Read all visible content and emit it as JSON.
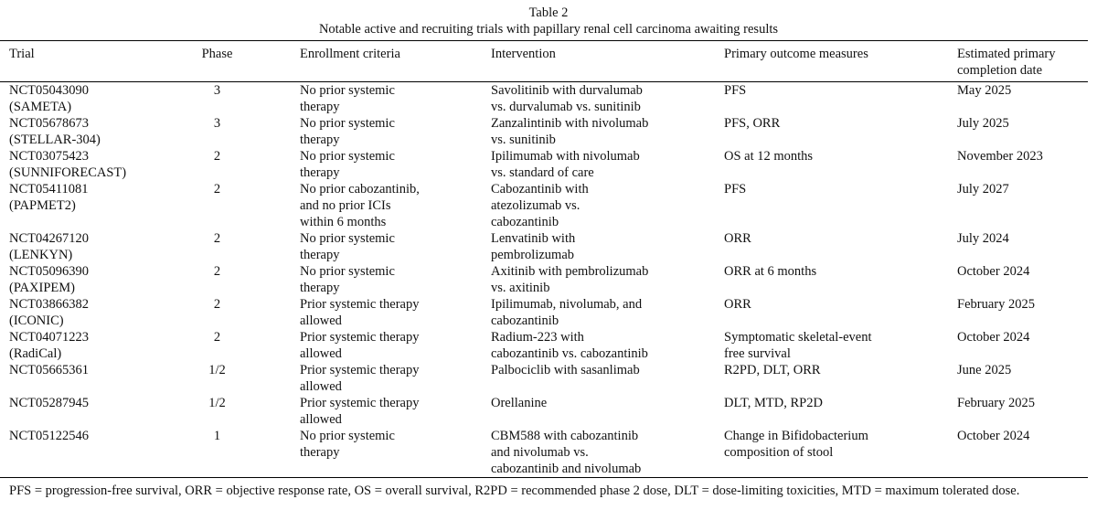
{
  "header": {
    "title": "Table 2",
    "subtitle": "Notable active and recruiting trials with papillary renal cell carcinoma awaiting results"
  },
  "table": {
    "columns": [
      [
        "Trial"
      ],
      [
        "Phase"
      ],
      [
        "Enrollment criteria"
      ],
      [
        "Intervention"
      ],
      [
        "Primary outcome measures"
      ],
      [
        "Estimated primary",
        "completion date"
      ]
    ],
    "rows": [
      [
        [
          "NCT05043090",
          "(SAMETA)"
        ],
        [
          "3"
        ],
        [
          "No prior systemic",
          "therapy"
        ],
        [
          "Savolitinib with durvalumab",
          "vs. durvalumab vs. sunitinib"
        ],
        [
          "PFS"
        ],
        [
          "May 2025"
        ]
      ],
      [
        [
          "NCT05678673",
          "(STELLAR-304)"
        ],
        [
          "3"
        ],
        [
          "No prior systemic",
          "therapy"
        ],
        [
          "Zanzalintinib with nivolumab",
          "vs. sunitinib"
        ],
        [
          "PFS, ORR"
        ],
        [
          "July 2025"
        ]
      ],
      [
        [
          "NCT03075423",
          "(SUNNIFORECAST)"
        ],
        [
          "2"
        ],
        [
          "No prior systemic",
          "therapy"
        ],
        [
          "Ipilimumab with nivolumab",
          "vs. standard of care"
        ],
        [
          "OS at 12 months"
        ],
        [
          "November 2023"
        ]
      ],
      [
        [
          "NCT05411081",
          "(PAPMET2)"
        ],
        [
          "2"
        ],
        [
          "No prior cabozantinib,",
          "and no prior ICIs",
          "within 6 months"
        ],
        [
          "Cabozantinib with",
          "atezolizumab vs.",
          "cabozantinib"
        ],
        [
          "PFS"
        ],
        [
          "July 2027"
        ]
      ],
      [
        [
          "NCT04267120",
          "(LENKYN)"
        ],
        [
          "2"
        ],
        [
          "No prior systemic",
          "therapy"
        ],
        [
          "Lenvatinib with",
          "pembrolizumab"
        ],
        [
          "ORR"
        ],
        [
          "July 2024"
        ]
      ],
      [
        [
          "NCT05096390",
          "(PAXIPEM)"
        ],
        [
          "2"
        ],
        [
          "No prior systemic",
          "therapy"
        ],
        [
          "Axitinib with pembrolizumab",
          "vs. axitinib"
        ],
        [
          "ORR at 6 months"
        ],
        [
          "October 2024"
        ]
      ],
      [
        [
          "NCT03866382",
          "(ICONIC)"
        ],
        [
          "2"
        ],
        [
          "Prior systemic therapy",
          "allowed"
        ],
        [
          "Ipilimumab, nivolumab, and",
          "cabozantinib"
        ],
        [
          "ORR"
        ],
        [
          "February 2025"
        ]
      ],
      [
        [
          "NCT04071223",
          "(RadiCal)"
        ],
        [
          "2"
        ],
        [
          "Prior systemic therapy",
          "allowed"
        ],
        [
          "Radium-223 with",
          "cabozantinib vs. cabozantinib"
        ],
        [
          "Symptomatic skeletal-event",
          "free survival"
        ],
        [
          "October 2024"
        ]
      ],
      [
        [
          "NCT05665361"
        ],
        [
          "1/2"
        ],
        [
          "Prior systemic therapy",
          "allowed"
        ],
        [
          "Palbociclib with sasanlimab"
        ],
        [
          "R2PD, DLT, ORR"
        ],
        [
          "June 2025"
        ]
      ],
      [
        [
          "NCT05287945"
        ],
        [
          "1/2"
        ],
        [
          "Prior systemic therapy",
          "allowed"
        ],
        [
          "Orellanine"
        ],
        [
          "DLT, MTD, RP2D"
        ],
        [
          "February 2025"
        ]
      ],
      [
        [
          "NCT05122546"
        ],
        [
          "1"
        ],
        [
          "No prior systemic",
          "therapy"
        ],
        [
          "CBM588 with cabozantinib",
          "and nivolumab vs.",
          "cabozantinib and nivolumab"
        ],
        [
          "Change in Bifidobacterium",
          "composition of stool"
        ],
        [
          "October 2024"
        ]
      ]
    ]
  },
  "footnote": "PFS = progression-free survival, ORR = objective response rate, OS = overall survival, R2PD = recommended phase 2 dose, DLT = dose-limiting toxicities, MTD = maximum tolerated dose."
}
